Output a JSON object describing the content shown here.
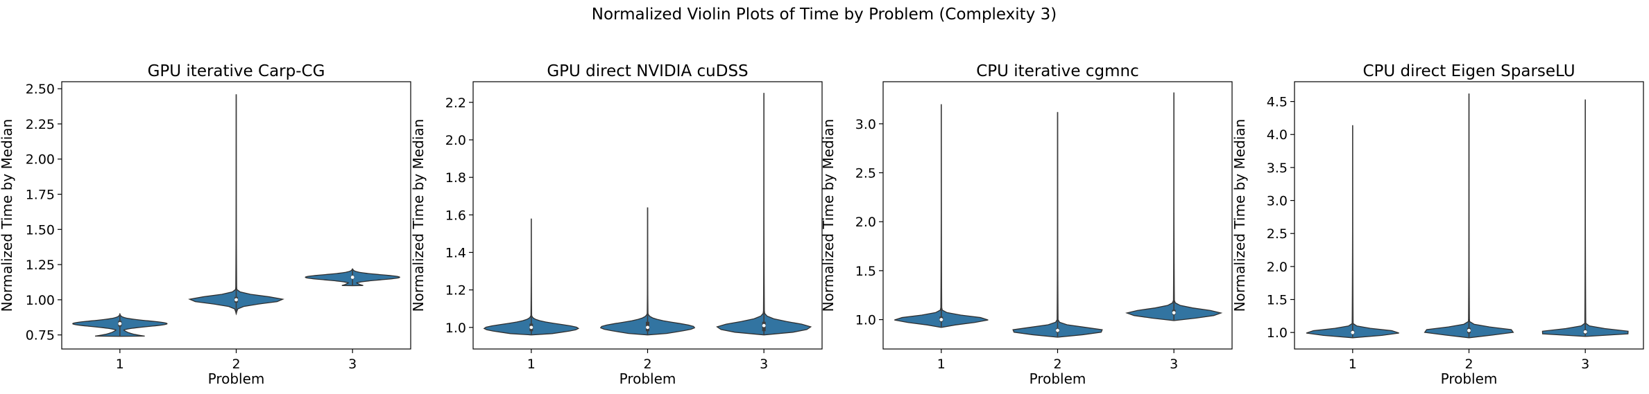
{
  "figure": {
    "suptitle": "Normalized Violin Plots of Time by Problem (Complexity 3)"
  },
  "style": {
    "violin_fill": "#3274a1",
    "violin_edge": "#2f2f2f",
    "median_marker": "#ffffff"
  },
  "chart_data": [
    {
      "type": "violin",
      "title": "GPU iterative Carp-CG",
      "xlabel": "Problem",
      "ylabel": "Normalized Time by Median",
      "categories": [
        "1",
        "2",
        "3"
      ],
      "ylim": [
        0.65,
        2.55
      ],
      "yticks": [
        0.75,
        1.0,
        1.25,
        1.5,
        1.75,
        2.0,
        2.25,
        2.5
      ],
      "ytick_labels": [
        "0.75",
        "1.00",
        "1.25",
        "1.50",
        "1.75",
        "2.00",
        "2.25",
        "2.50"
      ],
      "violins": [
        {
          "min": 0.74,
          "max": 0.9,
          "median": 0.83,
          "q1": 0.81,
          "q3": 0.85,
          "mode": 0.83,
          "spread": 0.02
        },
        {
          "min": 0.9,
          "max": 2.46,
          "median": 1.0,
          "q1": 0.98,
          "q3": 1.02,
          "mode": 1.0,
          "spread": 0.025
        },
        {
          "min": 1.1,
          "max": 1.22,
          "median": 1.16,
          "q1": 1.15,
          "q3": 1.17,
          "mode": 1.16,
          "spread": 0.018
        }
      ]
    },
    {
      "type": "violin",
      "title": "GPU direct NVIDIA cuDSS",
      "xlabel": "Problem",
      "ylabel": "Normalized Time by Median",
      "categories": [
        "1",
        "2",
        "3"
      ],
      "ylim": [
        0.885,
        2.31
      ],
      "yticks": [
        1.0,
        1.2,
        1.4,
        1.6,
        1.8,
        2.0,
        2.2
      ],
      "ytick_labels": [
        "1.0",
        "1.2",
        "1.4",
        "1.6",
        "1.8",
        "2.0",
        "2.2"
      ],
      "violins": [
        {
          "min": 0.96,
          "max": 1.58,
          "median": 1.0,
          "q1": 0.98,
          "q3": 1.02,
          "mode": 0.995,
          "spread": 0.022
        },
        {
          "min": 0.96,
          "max": 1.64,
          "median": 1.0,
          "q1": 0.98,
          "q3": 1.03,
          "mode": 1.0,
          "spread": 0.024
        },
        {
          "min": 0.96,
          "max": 2.25,
          "median": 1.01,
          "q1": 0.98,
          "q3": 1.03,
          "mode": 1.0,
          "spread": 0.026
        }
      ]
    },
    {
      "type": "violin",
      "title": "CPU iterative cgmnc",
      "xlabel": "Problem",
      "ylabel": "Normalized Time by Median",
      "categories": [
        "1",
        "2",
        "3"
      ],
      "ylim": [
        0.7,
        3.43
      ],
      "yticks": [
        1.0,
        1.5,
        2.0,
        2.5,
        3.0
      ],
      "ytick_labels": [
        "1.0",
        "1.5",
        "2.0",
        "2.5",
        "3.0"
      ],
      "violins": [
        {
          "min": 0.92,
          "max": 3.2,
          "median": 1.0,
          "q1": 0.98,
          "q3": 1.03,
          "mode": 1.0,
          "spread": 0.035
        },
        {
          "min": 0.82,
          "max": 3.12,
          "median": 0.89,
          "q1": 0.87,
          "q3": 0.91,
          "mode": 0.885,
          "spread": 0.035
        },
        {
          "min": 0.99,
          "max": 3.32,
          "median": 1.07,
          "q1": 1.05,
          "q3": 1.1,
          "mode": 1.065,
          "spread": 0.04
        }
      ]
    },
    {
      "type": "violin",
      "title": "CPU direct Eigen SparseLU",
      "xlabel": "Problem",
      "ylabel": "Normalized Time by Median",
      "categories": [
        "1",
        "2",
        "3"
      ],
      "ylim": [
        0.75,
        4.8
      ],
      "yticks": [
        1.0,
        1.5,
        2.0,
        2.5,
        3.0,
        3.5,
        4.0,
        4.5
      ],
      "ytick_labels": [
        "1.0",
        "1.5",
        "2.0",
        "2.5",
        "3.0",
        "3.5",
        "4.0",
        "4.5"
      ],
      "violins": [
        {
          "min": 0.92,
          "max": 4.14,
          "median": 1.0,
          "q1": 0.98,
          "q3": 1.03,
          "mode": 1.0,
          "spread": 0.045
        },
        {
          "min": 0.92,
          "max": 4.62,
          "median": 1.03,
          "q1": 0.99,
          "q3": 1.07,
          "mode": 1.02,
          "spread": 0.05
        },
        {
          "min": 0.94,
          "max": 4.53,
          "median": 1.01,
          "q1": 0.98,
          "q3": 1.04,
          "mode": 1.0,
          "spread": 0.045
        }
      ]
    }
  ]
}
